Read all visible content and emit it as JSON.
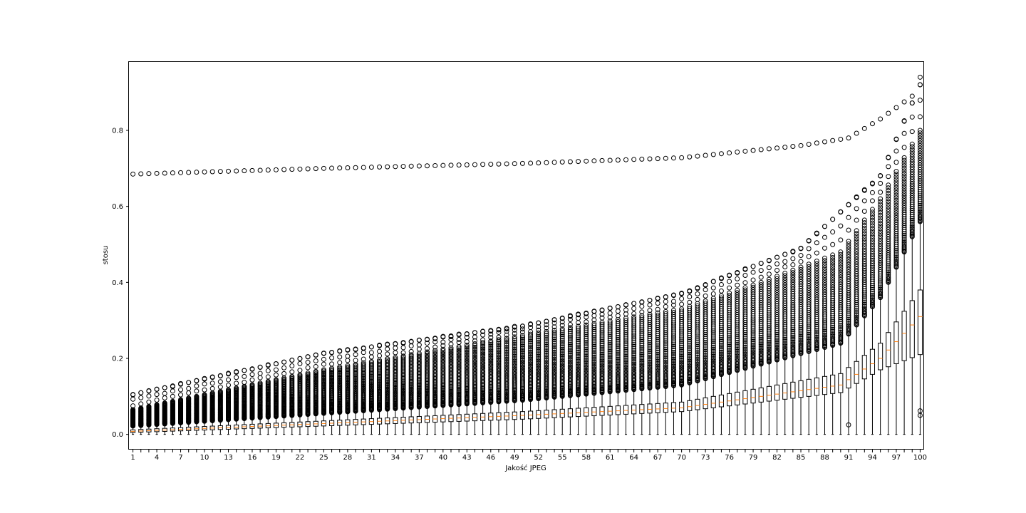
{
  "chart_data": {
    "type": "boxplot",
    "title": "",
    "xlabel": "Jakość JPEG",
    "ylabel": "stosu",
    "ylim": [
      -0.04,
      0.98
    ],
    "xlim": [
      0.5,
      100.5
    ],
    "yticks": [
      0.0,
      0.2,
      0.4,
      0.6,
      0.8
    ],
    "ytick_labels": [
      "0.0",
      "0.2",
      "0.4",
      "0.6",
      "0.8"
    ],
    "xticks": [
      1,
      4,
      7,
      10,
      13,
      16,
      19,
      22,
      25,
      28,
      31,
      34,
      37,
      40,
      43,
      46,
      49,
      52,
      55,
      58,
      61,
      64,
      67,
      70,
      73,
      76,
      79,
      82,
      85,
      88,
      91,
      94,
      97,
      100
    ],
    "xtick_labels": [
      "1",
      "4",
      "7",
      "10",
      "13",
      "16",
      "19",
      "22",
      "25",
      "28",
      "31",
      "34",
      "37",
      "40",
      "43",
      "46",
      "49",
      "52",
      "55",
      "58",
      "61",
      "64",
      "67",
      "70",
      "73",
      "76",
      "79",
      "82",
      "85",
      "88",
      "91",
      "94",
      "97",
      "100"
    ],
    "grid": false,
    "categories_range": [
      1,
      100
    ],
    "series_summary": {
      "q1_at": [
        [
          1,
          0.005
        ],
        [
          50,
          0.04
        ],
        [
          70,
          0.06
        ],
        [
          90,
          0.11
        ],
        [
          95,
          0.17
        ],
        [
          100,
          0.21
        ]
      ],
      "median_at": [
        [
          1,
          0.008
        ],
        [
          50,
          0.05
        ],
        [
          70,
          0.07
        ],
        [
          90,
          0.13
        ],
        [
          95,
          0.2
        ],
        [
          100,
          0.31
        ]
      ],
      "q3_at": [
        [
          1,
          0.012
        ],
        [
          50,
          0.06
        ],
        [
          70,
          0.085
        ],
        [
          90,
          0.16
        ],
        [
          95,
          0.24
        ],
        [
          100,
          0.38
        ]
      ],
      "whisker_low": 0.0,
      "whisker_high_at": [
        [
          1,
          0.022
        ],
        [
          50,
          0.09
        ],
        [
          70,
          0.13
        ],
        [
          90,
          0.24
        ],
        [
          95,
          0.36
        ],
        [
          100,
          0.56
        ]
      ],
      "outlier_band_top_at": [
        [
          1,
          0.065
        ],
        [
          25,
          0.17
        ],
        [
          50,
          0.26
        ],
        [
          70,
          0.33
        ],
        [
          80,
          0.4
        ],
        [
          90,
          0.48
        ],
        [
          95,
          0.62
        ],
        [
          100,
          0.8
        ]
      ],
      "top_outlier_at": [
        [
          1,
          0.685
        ],
        [
          25,
          0.7
        ],
        [
          50,
          0.713
        ],
        [
          70,
          0.728
        ],
        [
          85,
          0.76
        ],
        [
          91,
          0.78
        ],
        [
          95,
          0.83
        ],
        [
          99,
          0.89
        ],
        [
          100,
          0.94
        ]
      ],
      "second_outlier_at": [
        [
          1,
          0.105
        ],
        [
          25,
          0.213
        ],
        [
          50,
          0.285
        ],
        [
          70,
          0.37
        ],
        [
          85,
          0.49
        ],
        [
          95,
          0.68
        ],
        [
          100,
          0.92
        ]
      ]
    },
    "colors": {
      "box": "#000000",
      "median": "#ff7f0e",
      "outlier": "#000000"
    }
  }
}
